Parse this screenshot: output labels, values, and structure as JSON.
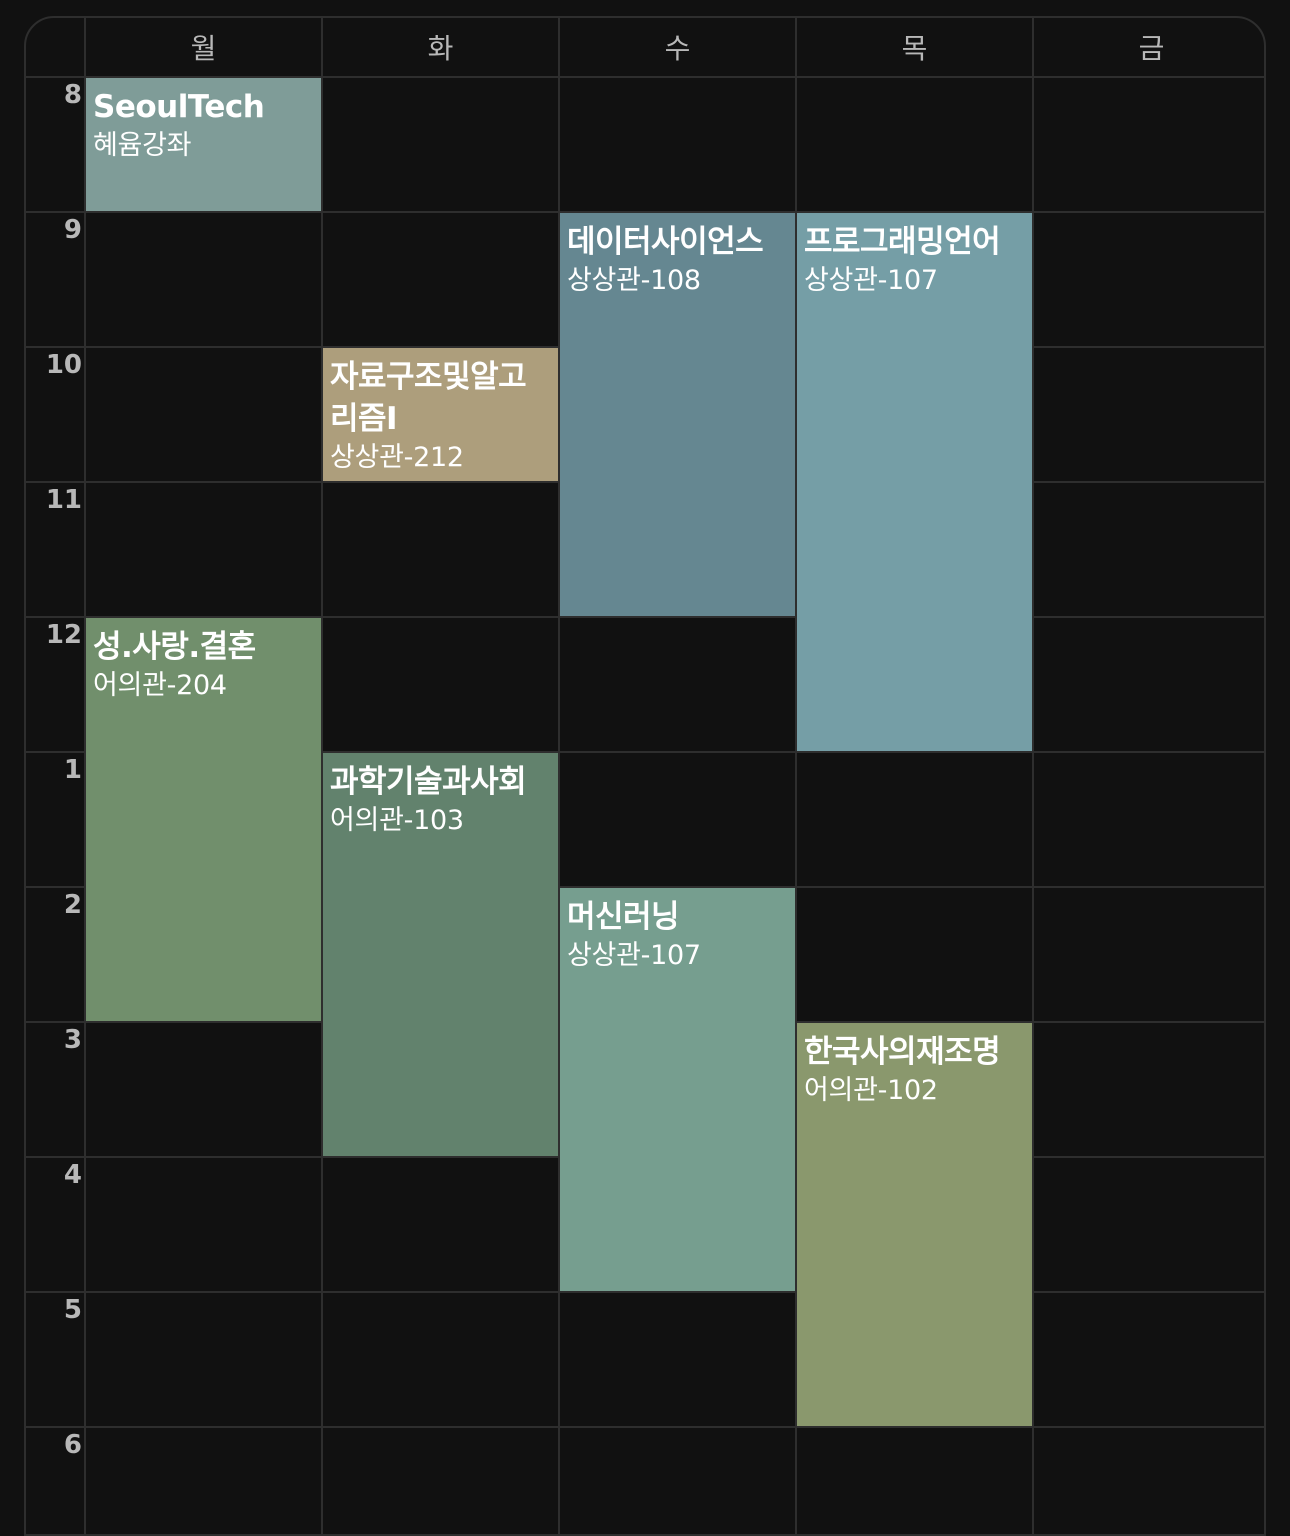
{
  "days": [
    "월",
    "화",
    "수",
    "목",
    "금"
  ],
  "hours": [
    "8",
    "9",
    "10",
    "11",
    "12",
    "1",
    "2",
    "3",
    "4",
    "5",
    "6"
  ],
  "courses": [
    {
      "name": "SeoulTech",
      "room": "혜윰강좌",
      "day": 0,
      "start": 0,
      "duration": 1,
      "color": "#7f9c98"
    },
    {
      "name": "데이터사이언스",
      "room": "상상관-108",
      "day": 2,
      "start": 1,
      "duration": 3,
      "color": "#658791"
    },
    {
      "name": "프로그래밍언어",
      "room": "상상관-107",
      "day": 3,
      "start": 1,
      "duration": 4,
      "color": "#759ea6"
    },
    {
      "name": "자료구조및알고리즘I",
      "room": "상상관-212",
      "day": 1,
      "start": 2,
      "duration": 1,
      "color": "#ad9e7c"
    },
    {
      "name": "성.사랑.결혼",
      "room": "어의관-204",
      "day": 0,
      "start": 4,
      "duration": 3,
      "color": "#718f6c"
    },
    {
      "name": "과학기술과사회",
      "room": "어의관-103",
      "day": 1,
      "start": 5,
      "duration": 3,
      "color": "#62826d"
    },
    {
      "name": "머신러닝",
      "room": "상상관-107",
      "day": 2,
      "start": 6,
      "duration": 3,
      "color": "#769e8f"
    },
    {
      "name": "한국사의재조명",
      "room": "어의관-102",
      "day": 3,
      "start": 7,
      "duration": 3,
      "color": "#8a986d"
    }
  ]
}
